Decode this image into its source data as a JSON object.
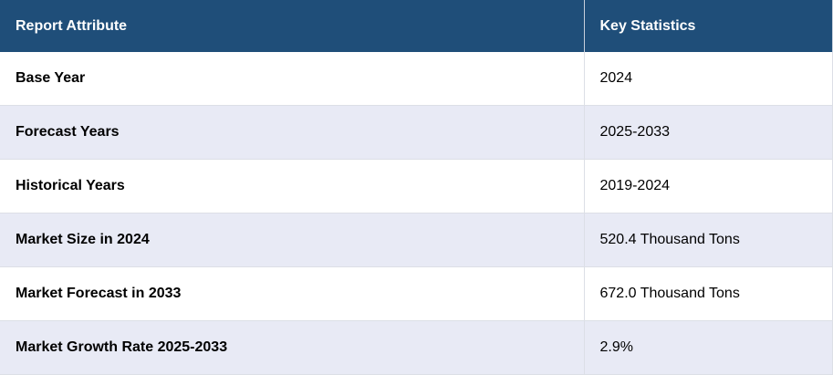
{
  "table": {
    "header": [
      "Report Attribute",
      "Key Statistics"
    ],
    "rows": [
      [
        "Base Year",
        "2024"
      ],
      [
        "Forecast Years",
        "2025-2033"
      ],
      [
        "Historical Years",
        "2019-2024"
      ],
      [
        "Market Size in 2024",
        "520.4 Thousand Tons"
      ],
      [
        "Market Forecast in 2033",
        "672.0 Thousand Tons"
      ],
      [
        "Market Growth Rate 2025-2033",
        "2.9%"
      ]
    ]
  }
}
